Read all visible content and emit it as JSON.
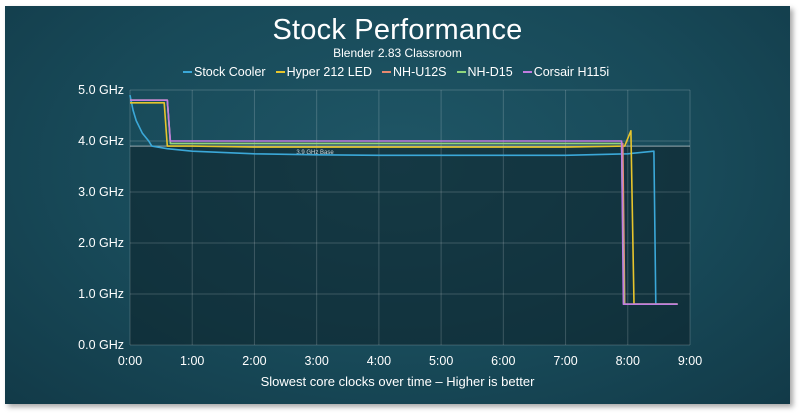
{
  "chart_data": {
    "type": "line",
    "title": "Stock Performance",
    "subtitle": "Blender 2.83 Classroom",
    "xlabel": "Slowest core clocks over time – Higher is better",
    "ylabel": "",
    "x_ticks": [
      "0:00",
      "1:00",
      "2:00",
      "3:00",
      "4:00",
      "5:00",
      "6:00",
      "7:00",
      "8:00",
      "9:00"
    ],
    "y_ticks": [
      "0.0 GHz",
      "1.0 GHz",
      "2.0 GHz",
      "3.0 GHz",
      "4.0 GHz",
      "5.0 GHz"
    ],
    "xlim": [
      0,
      9
    ],
    "ylim": [
      0,
      5
    ],
    "grid": true,
    "legend_position": "top",
    "annotation": {
      "label": "3.9 GHz Base",
      "value": 3.9
    },
    "series": [
      {
        "name": "Stock Cooler",
        "color": "#3ba8d8",
        "points": [
          [
            0.0,
            4.9
          ],
          [
            0.05,
            4.6
          ],
          [
            0.1,
            4.4
          ],
          [
            0.2,
            4.15
          ],
          [
            0.3,
            4.0
          ],
          [
            0.35,
            3.9
          ],
          [
            0.6,
            3.85
          ],
          [
            1.0,
            3.8
          ],
          [
            2.0,
            3.75
          ],
          [
            3.0,
            3.73
          ],
          [
            4.0,
            3.72
          ],
          [
            5.0,
            3.72
          ],
          [
            6.0,
            3.72
          ],
          [
            7.0,
            3.72
          ],
          [
            8.0,
            3.75
          ],
          [
            8.42,
            3.8
          ],
          [
            8.45,
            0.8
          ],
          [
            8.8,
            0.8
          ]
        ]
      },
      {
        "name": "Hyper 212 LED",
        "color": "#e7c52c",
        "points": [
          [
            0.0,
            4.75
          ],
          [
            0.55,
            4.75
          ],
          [
            0.6,
            3.9
          ],
          [
            1.0,
            3.9
          ],
          [
            2.0,
            3.88
          ],
          [
            3.0,
            3.88
          ],
          [
            4.0,
            3.88
          ],
          [
            5.0,
            3.88
          ],
          [
            6.0,
            3.88
          ],
          [
            7.0,
            3.88
          ],
          [
            7.95,
            3.9
          ],
          [
            8.05,
            4.2
          ],
          [
            8.1,
            0.8
          ],
          [
            8.8,
            0.8
          ]
        ]
      },
      {
        "name": "NH-U12S",
        "color": "#e8896f",
        "points": [
          [
            0.0,
            4.8
          ],
          [
            0.6,
            4.8
          ],
          [
            0.65,
            3.95
          ],
          [
            1.0,
            3.95
          ],
          [
            2.0,
            3.95
          ],
          [
            3.0,
            3.95
          ],
          [
            4.0,
            3.95
          ],
          [
            5.0,
            3.95
          ],
          [
            6.0,
            3.95
          ],
          [
            7.0,
            3.95
          ],
          [
            7.92,
            3.95
          ],
          [
            7.95,
            0.8
          ],
          [
            8.8,
            0.8
          ]
        ]
      },
      {
        "name": "NH-D15",
        "color": "#8fd67c",
        "points": [
          [
            0.0,
            4.8
          ],
          [
            0.6,
            4.8
          ],
          [
            0.65,
            3.95
          ],
          [
            1.0,
            3.95
          ],
          [
            2.0,
            3.95
          ],
          [
            3.0,
            3.95
          ],
          [
            4.0,
            3.95
          ],
          [
            5.0,
            3.95
          ],
          [
            6.0,
            3.95
          ],
          [
            7.0,
            3.95
          ],
          [
            7.9,
            3.95
          ],
          [
            7.94,
            0.8
          ],
          [
            8.8,
            0.8
          ]
        ]
      },
      {
        "name": "Corsair H115i",
        "color": "#c27ce0",
        "points": [
          [
            0.0,
            4.8
          ],
          [
            0.6,
            4.8
          ],
          [
            0.65,
            4.0
          ],
          [
            1.0,
            4.0
          ],
          [
            2.0,
            4.0
          ],
          [
            3.0,
            4.0
          ],
          [
            4.0,
            4.0
          ],
          [
            5.0,
            4.0
          ],
          [
            6.0,
            4.0
          ],
          [
            7.0,
            4.0
          ],
          [
            7.9,
            4.0
          ],
          [
            7.93,
            0.8
          ],
          [
            8.8,
            0.8
          ]
        ]
      }
    ]
  }
}
